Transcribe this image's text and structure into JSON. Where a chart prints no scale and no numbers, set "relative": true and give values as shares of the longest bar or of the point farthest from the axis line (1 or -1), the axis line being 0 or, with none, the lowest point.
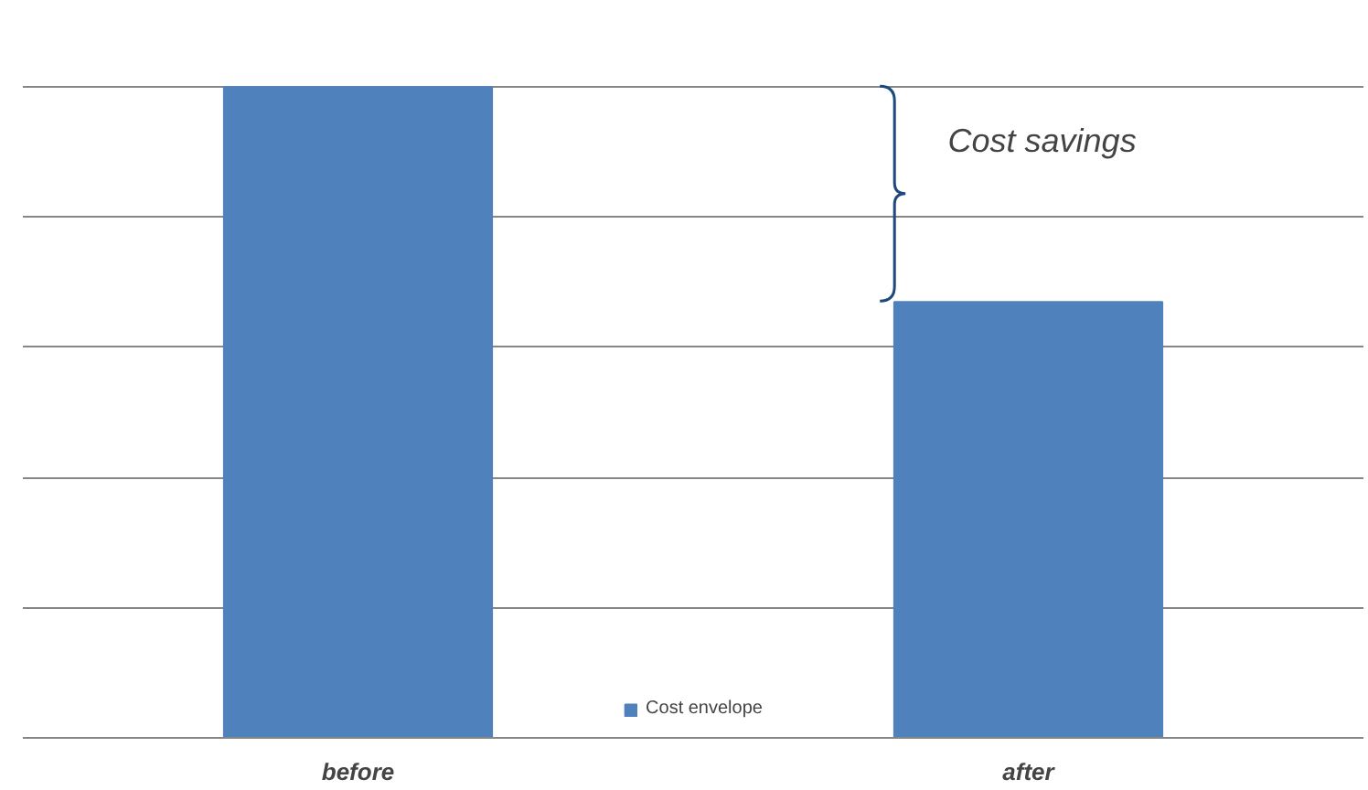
{
  "chart_data": {
    "type": "bar",
    "categories": [
      "before",
      "after"
    ],
    "series": [
      {
        "name": "Cost envelope",
        "color": "#4f81bd",
        "values": [
          1,
          0.67
        ]
      }
    ],
    "relative": true,
    "grid": "y",
    "legend": "bottom",
    "annotations": [
      "Cost savings"
    ]
  }
}
